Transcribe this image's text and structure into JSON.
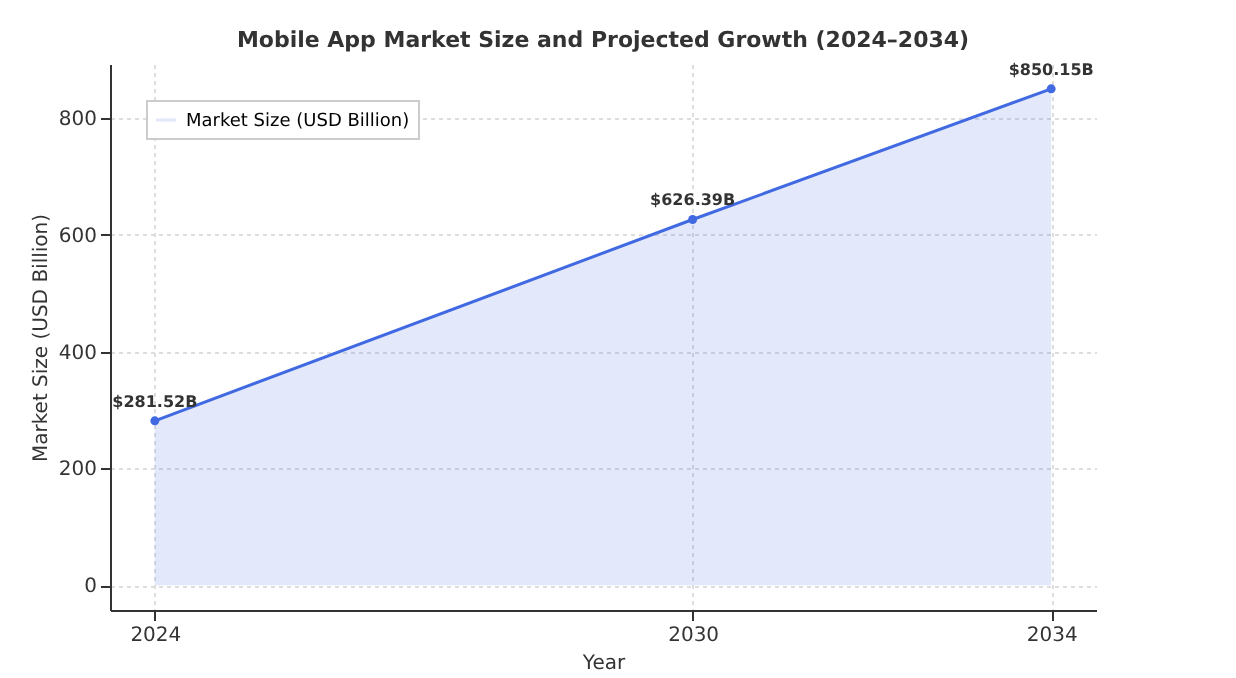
{
  "chart_data": {
    "type": "area",
    "title": "Mobile App Market Size and Projected Growth (2024–2034)",
    "xlabel": "Year",
    "ylabel": "Market Size (USD Billion)",
    "x": [
      2024,
      2030,
      2034
    ],
    "series": [
      {
        "name": "Market Size (USD Billion)",
        "color": "#4169e1",
        "values": [
          281.52,
          626.39,
          850.15
        ],
        "value_labels": [
          "$281.52B",
          "$626.39B",
          "$850.15B"
        ]
      }
    ],
    "xlim": [
      2023.5,
      2034.5
    ],
    "xticks": [
      2024,
      2030,
      2034
    ],
    "ylim": [
      -42.5,
      892.7
    ],
    "yticks": [
      0,
      200,
      400,
      600,
      800
    ],
    "grid": true,
    "legend": "top left",
    "marker": "circle",
    "line_style": "solid"
  }
}
